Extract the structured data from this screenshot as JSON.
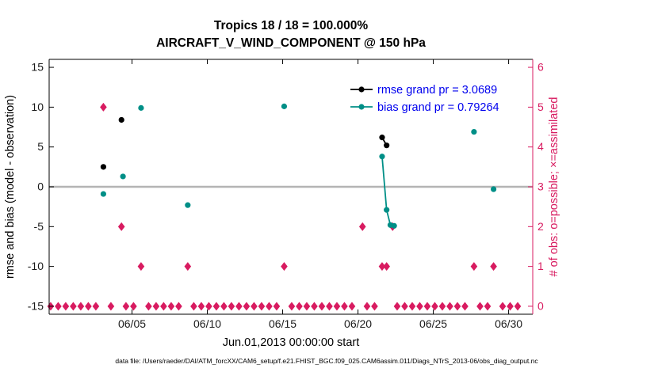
{
  "footer": "data file: /Users/raeder/DAI/ATM_forcXX/CAM6_setup/f.e21.FHIST_BGC.f09_025.CAM6assim.011/Diags_NTrS_2013-06/obs_diag_output.nc",
  "colors": {
    "rmse": "#000000",
    "bias": "#008f87",
    "obs": "#d81b60",
    "right_axis": "#d81b60",
    "legend_text": "#0000ee",
    "zero_line": "#b4b4b4",
    "axis": "#000000",
    "tick_text": "#1a1a1a"
  },
  "chart_data": {
    "type": "line",
    "title": "Tropics 18 / 18 = 100.000%",
    "subtitle": "AIRCRAFT_V_WIND_COMPONENT @ 150 hPa",
    "xlabel": "Jun.01,2013 00:00:00 start",
    "ylabel_left": "rmse and bias (model - observation)",
    "ylabel_right": "# of obs: o=possible; ×=assimilated",
    "xlim": [
      -0.5,
      31.6
    ],
    "ylim_left": [
      -16,
      16
    ],
    "ylim_right": [
      -0.2,
      6.2
    ],
    "xticks": [
      {
        "v": 5,
        "label": "06/05"
      },
      {
        "v": 10,
        "label": "06/10"
      },
      {
        "v": 15,
        "label": "06/15"
      },
      {
        "v": 20,
        "label": "06/20"
      },
      {
        "v": 25,
        "label": "06/25"
      },
      {
        "v": 30,
        "label": "06/30"
      }
    ],
    "yticks_left": [
      -15,
      -10,
      -5,
      0,
      5,
      10,
      15
    ],
    "yticks_right": [
      0,
      1,
      2,
      3,
      4,
      5,
      6
    ],
    "zero_line_value": 0,
    "series": [
      {
        "name": "rmse",
        "legend": "rmse grand pr = 3.0689",
        "color_key": "rmse",
        "segments": [
          [
            [
              3.1,
              2.5
            ]
          ],
          [
            [
              4.3,
              8.4
            ]
          ],
          [
            [
              21.6,
              6.2
            ],
            [
              21.9,
              5.2
            ]
          ]
        ]
      },
      {
        "name": "bias",
        "legend": "bias grand pr = 0.79264",
        "color_key": "bias",
        "segments": [
          [
            [
              3.1,
              -0.9
            ]
          ],
          [
            [
              4.4,
              1.3
            ]
          ],
          [
            [
              5.6,
              9.9
            ]
          ],
          [
            [
              8.7,
              -2.3
            ]
          ],
          [
            [
              15.1,
              10.1
            ]
          ],
          [
            [
              21.6,
              3.8
            ],
            [
              21.9,
              -2.9
            ],
            [
              22.15,
              -4.8
            ]
          ],
          [
            [
              22.4,
              -4.9
            ]
          ],
          [
            [
              27.7,
              6.9
            ]
          ],
          [
            [
              29.0,
              -0.3
            ]
          ]
        ]
      }
    ],
    "obs_counts": {
      "axis": "right",
      "nonzero": [
        [
          3.1,
          5
        ],
        [
          4.3,
          2
        ],
        [
          5.6,
          1
        ],
        [
          8.7,
          1
        ],
        [
          15.1,
          1
        ],
        [
          20.3,
          2
        ],
        [
          21.6,
          1
        ],
        [
          21.9,
          1
        ],
        [
          22.3,
          2
        ],
        [
          27.7,
          1
        ],
        [
          29.0,
          1
        ]
      ],
      "zero_row": {
        "start": -0.4,
        "end": 30.9,
        "step": 0.5,
        "value": 0
      }
    }
  }
}
